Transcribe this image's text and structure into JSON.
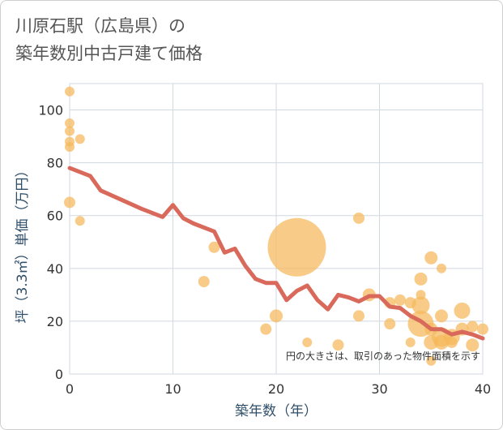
{
  "chart_data": {
    "type": "scatter",
    "title_line1": "川原石駅（広島県）の",
    "title_line2": "築年数別中古戸建て価格",
    "xlabel": "築年数（年）",
    "ylabel": "坪（3.3㎡）単価（万円）",
    "xlim": [
      0,
      40
    ],
    "ylim": [
      0,
      110
    ],
    "xticks": [
      "0",
      "10",
      "20",
      "30",
      "40"
    ],
    "yticks": [
      "0",
      "20",
      "40",
      "60",
      "80",
      "100"
    ],
    "note": "円の大きさは、取引のあった物件面積を示す",
    "colors": {
      "bubble": "#f5b95a",
      "line": "#d9695a",
      "grid": "#d0d8e0"
    },
    "points": [
      {
        "x": 0,
        "y": 107,
        "s": 6
      },
      {
        "x": 0,
        "y": 95,
        "s": 6
      },
      {
        "x": 0,
        "y": 92,
        "s": 6
      },
      {
        "x": 0,
        "y": 88,
        "s": 6
      },
      {
        "x": 0,
        "y": 86,
        "s": 6
      },
      {
        "x": 1,
        "y": 89,
        "s": 6
      },
      {
        "x": 0,
        "y": 65,
        "s": 7
      },
      {
        "x": 1,
        "y": 58,
        "s": 6
      },
      {
        "x": 14,
        "y": 48,
        "s": 7
      },
      {
        "x": 13,
        "y": 35,
        "s": 7
      },
      {
        "x": 19,
        "y": 17,
        "s": 7
      },
      {
        "x": 20,
        "y": 22,
        "s": 8
      },
      {
        "x": 22,
        "y": 48,
        "s": 36
      },
      {
        "x": 23,
        "y": 12,
        "s": 6
      },
      {
        "x": 26,
        "y": 11,
        "s": 7
      },
      {
        "x": 28,
        "y": 59,
        "s": 7
      },
      {
        "x": 28,
        "y": 22,
        "s": 7
      },
      {
        "x": 29,
        "y": 30,
        "s": 8
      },
      {
        "x": 31,
        "y": 27,
        "s": 7
      },
      {
        "x": 31,
        "y": 19,
        "s": 7
      },
      {
        "x": 32,
        "y": 28,
        "s": 7
      },
      {
        "x": 33,
        "y": 27,
        "s": 7
      },
      {
        "x": 33,
        "y": 12,
        "s": 6
      },
      {
        "x": 34,
        "y": 36,
        "s": 8
      },
      {
        "x": 34,
        "y": 30,
        "s": 6
      },
      {
        "x": 34,
        "y": 26,
        "s": 11
      },
      {
        "x": 34,
        "y": 19,
        "s": 16
      },
      {
        "x": 35,
        "y": 44,
        "s": 8
      },
      {
        "x": 35,
        "y": 17,
        "s": 8
      },
      {
        "x": 35,
        "y": 12,
        "s": 9
      },
      {
        "x": 35,
        "y": 5,
        "s": 6
      },
      {
        "x": 36,
        "y": 40,
        "s": 6
      },
      {
        "x": 36,
        "y": 22,
        "s": 8
      },
      {
        "x": 36,
        "y": 14,
        "s": 12
      },
      {
        "x": 36,
        "y": 12,
        "s": 9
      },
      {
        "x": 37,
        "y": 14,
        "s": 10
      },
      {
        "x": 37,
        "y": 12,
        "s": 7
      },
      {
        "x": 38,
        "y": 24,
        "s": 10
      },
      {
        "x": 38,
        "y": 17,
        "s": 8
      },
      {
        "x": 39,
        "y": 18,
        "s": 7
      },
      {
        "x": 39,
        "y": 11,
        "s": 8
      },
      {
        "x": 40,
        "y": 17,
        "s": 7
      }
    ],
    "trend": {
      "x": [
        0,
        2,
        3,
        5,
        7,
        9,
        10,
        11,
        12,
        14,
        15,
        16,
        17,
        18,
        19,
        20,
        21,
        22,
        23,
        24,
        25,
        26,
        27,
        28,
        29,
        30,
        31,
        32,
        33,
        34,
        35,
        36,
        37,
        38,
        39,
        40
      ],
      "y": [
        78,
        75,
        69.5,
        66,
        62.5,
        59.5,
        64,
        59,
        57,
        54,
        46,
        47.5,
        41,
        36,
        34.5,
        34.5,
        28,
        31.5,
        33.5,
        28,
        24.5,
        30,
        29,
        27.5,
        29.5,
        29.5,
        25.5,
        25,
        22,
        20,
        17,
        17,
        15,
        16,
        15,
        13.5
      ]
    }
  }
}
